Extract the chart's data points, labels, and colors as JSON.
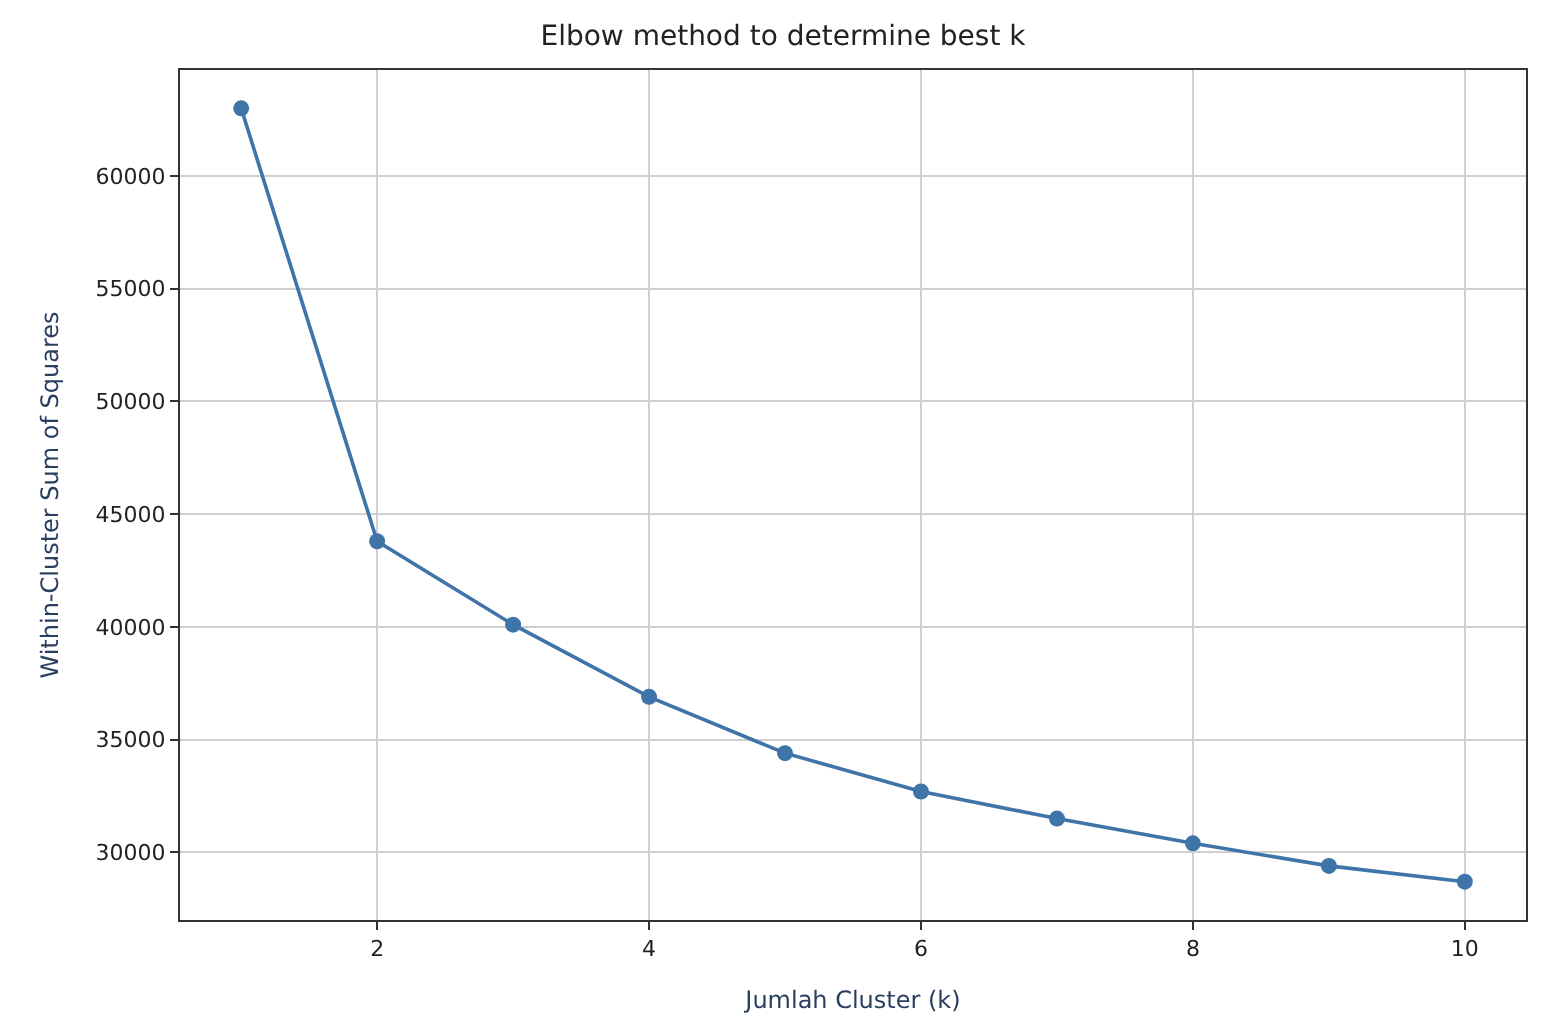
{
  "chart_data": {
    "type": "line",
    "title": "Elbow method to determine best k",
    "xlabel": "Jumlah Cluster (k)",
    "ylabel": "Within-Cluster Sum of Squares",
    "x": [
      1,
      2,
      3,
      4,
      5,
      6,
      7,
      8,
      9,
      10
    ],
    "series": [
      {
        "color": "#3f74a8",
        "values": [
          63000,
          43800,
          40100,
          36900,
          34400,
          32700,
          31500,
          30400,
          29400,
          28700
        ]
      }
    ],
    "xlim": [
      0.55,
      10.45
    ],
    "xticks": [
      2,
      4,
      6,
      8,
      10
    ],
    "ylim": [
      27000,
      64700
    ],
    "yticks": [
      30000,
      35000,
      40000,
      45000,
      50000,
      55000,
      60000
    ],
    "grid": true,
    "marker": "circle",
    "line_style": "solid"
  }
}
